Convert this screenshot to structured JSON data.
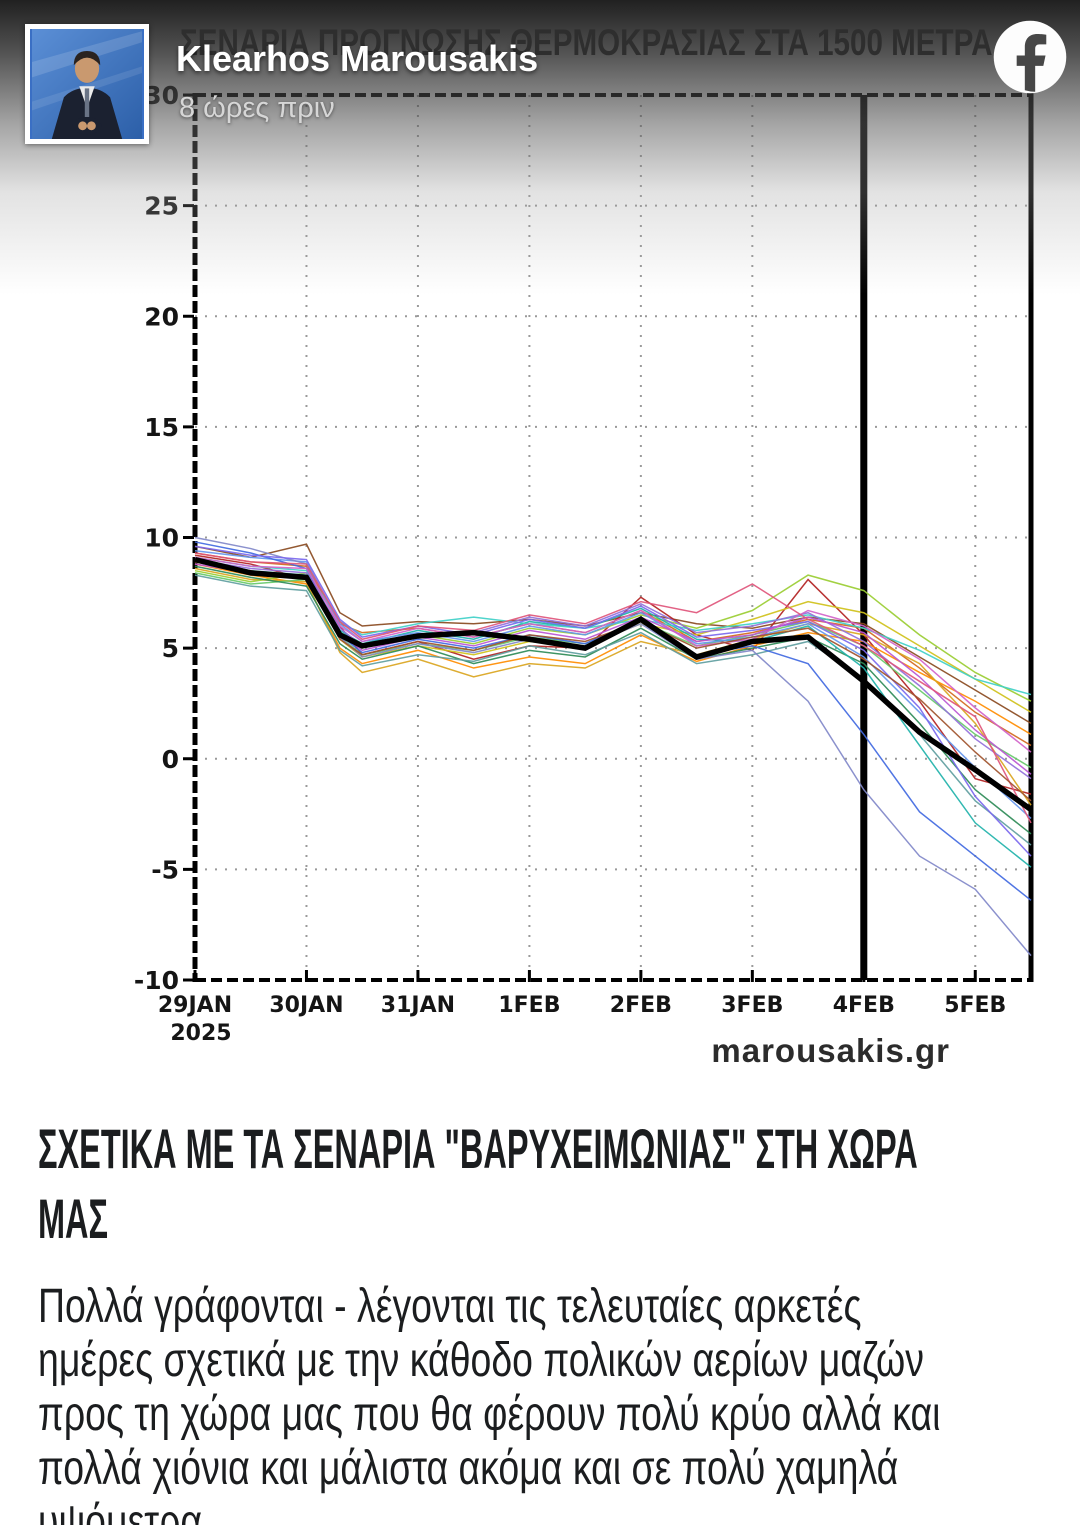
{
  "header": {
    "name": "Klearhos Marousakis",
    "time_ago": "8 ώρες πριν",
    "facebook_icon": "facebook-f-logo",
    "avatar": "tv-presenter-portrait"
  },
  "chart_data": {
    "type": "line",
    "title": "ΣΕΝΑΡΙΑ ΠΡΟΓΝΩΣΗΣ ΘΕΡΜΟΚΡΑΣΙΑΣ ΣΤΑ 1500 ΜΕΤΡΑ",
    "watermark": "marousakis.gr",
    "grid": "dotted",
    "x_unit": "days_from_29JAN2025",
    "x_max": 7.5,
    "x_axis": {
      "year": "2025",
      "labels": [
        {
          "day": 0,
          "label": "29JAN"
        },
        {
          "day": 1,
          "label": "30JAN"
        },
        {
          "day": 2,
          "label": "31JAN"
        },
        {
          "day": 3,
          "label": "1FEB"
        },
        {
          "day": 4,
          "label": "2FEB"
        },
        {
          "day": 5,
          "label": "3FEB"
        },
        {
          "day": 6,
          "label": "4FEB"
        },
        {
          "day": 7,
          "label": "5FEB"
        }
      ]
    },
    "y_axis": {
      "min": -10,
      "max": 30,
      "step": 5,
      "ticks": [
        30,
        25,
        20,
        15,
        10,
        5,
        0,
        -5,
        -10
      ]
    },
    "forecast_line_day": 6,
    "x_points": [
      0,
      0.5,
      1.0,
      1.3,
      1.5,
      2.0,
      2.5,
      3.0,
      3.5,
      4.0,
      4.5,
      5.0,
      5.5,
      6.0,
      6.5,
      7.0,
      7.5
    ],
    "mean": {
      "name": "ensemble-mean",
      "color": "#000000",
      "values": [
        9.0,
        8.4,
        8.2,
        5.6,
        5.1,
        5.55,
        5.7,
        5.4,
        5.0,
        6.3,
        4.6,
        5.3,
        5.5,
        3.5,
        1.2,
        -0.5,
        -2.3
      ]
    },
    "members": [
      {
        "color": "#8a4a1f",
        "values": [
          9.6,
          9.1,
          9.7,
          6.6,
          6.0,
          6.2,
          6.1,
          6.3,
          6.0,
          6.6,
          6.1,
          5.9,
          6.4,
          6.1,
          4.6,
          3.1,
          1.6
        ]
      },
      {
        "color": "#b22222",
        "values": [
          9.2,
          8.8,
          8.1,
          6.0,
          4.7,
          5.3,
          4.5,
          5.1,
          5.0,
          7.3,
          5.6,
          4.9,
          8.1,
          5.6,
          2.6,
          -0.9,
          -1.6
        ]
      },
      {
        "color": "#d2691e",
        "values": [
          9.3,
          8.9,
          8.7,
          6.1,
          5.7,
          5.9,
          5.5,
          6.1,
          5.7,
          6.7,
          5.3,
          5.7,
          6.3,
          5.9,
          4.1,
          2.1,
          0.6
        ]
      },
      {
        "color": "#ff8c00",
        "values": [
          8.8,
          8.3,
          7.9,
          5.0,
          4.3,
          4.9,
          4.1,
          4.6,
          4.3,
          5.6,
          4.4,
          5.1,
          5.7,
          5.3,
          3.9,
          2.6,
          1.1
        ]
      },
      {
        "color": "#daa520",
        "values": [
          8.6,
          8.1,
          8.0,
          4.8,
          3.9,
          4.5,
          3.7,
          4.3,
          4.1,
          5.3,
          4.7,
          5.4,
          6.1,
          5.6,
          4.3,
          1.6,
          -2.1
        ]
      },
      {
        "color": "#cfc11a",
        "values": [
          8.9,
          8.4,
          8.2,
          5.4,
          4.6,
          5.1,
          4.7,
          5.3,
          5.1,
          6.1,
          5.6,
          6.3,
          7.1,
          6.6,
          5.1,
          3.6,
          2.1
        ]
      },
      {
        "color": "#9acd32",
        "values": [
          8.5,
          8.0,
          8.4,
          5.7,
          5.0,
          5.6,
          5.2,
          5.9,
          5.6,
          6.5,
          5.9,
          6.7,
          8.3,
          7.6,
          5.6,
          3.9,
          2.6
        ]
      },
      {
        "color": "#66c96a",
        "values": [
          8.4,
          7.9,
          8.1,
          5.5,
          4.7,
          5.2,
          4.9,
          5.5,
          5.2,
          6.2,
          5.1,
          5.6,
          6.2,
          5.1,
          3.1,
          1.1,
          -0.4
        ]
      },
      {
        "color": "#2e8b57",
        "values": [
          8.7,
          8.2,
          7.8,
          5.2,
          4.5,
          5.1,
          4.3,
          4.9,
          4.6,
          5.9,
          4.5,
          5.0,
          5.5,
          4.3,
          1.6,
          -1.4,
          -3.4
        ]
      },
      {
        "color": "#20b2aa",
        "values": [
          9.0,
          8.5,
          8.3,
          5.8,
          5.2,
          5.8,
          5.4,
          6.2,
          5.9,
          6.8,
          5.4,
          5.3,
          6.0,
          4.1,
          0.6,
          -2.9,
          -4.9
        ]
      },
      {
        "color": "#40d0c8",
        "values": [
          9.1,
          8.7,
          8.5,
          6.2,
          5.6,
          6.1,
          6.4,
          6.1,
          5.9,
          6.3,
          5.8,
          6.1,
          6.5,
          5.9,
          4.9,
          3.6,
          2.9
        ]
      },
      {
        "color": "#5f9ea0",
        "values": [
          8.3,
          7.8,
          7.6,
          4.9,
          4.2,
          4.7,
          4.4,
          5.1,
          4.7,
          5.7,
          4.3,
          4.7,
          5.3,
          3.6,
          1.1,
          -1.9,
          -3.9
        ]
      },
      {
        "color": "#6495ed",
        "values": [
          9.4,
          9.1,
          8.9,
          6.1,
          5.3,
          5.7,
          5.3,
          6.0,
          5.6,
          6.6,
          5.2,
          5.5,
          6.1,
          4.6,
          2.1,
          -0.4,
          -2.7
        ]
      },
      {
        "color": "#4169e1",
        "values": [
          9.8,
          9.3,
          8.6,
          5.6,
          4.8,
          5.4,
          5.0,
          5.6,
          5.2,
          6.3,
          4.7,
          5.1,
          4.3,
          1.1,
          -2.4,
          -4.4,
          -6.4
        ]
      },
      {
        "color": "#8188c9",
        "values": [
          10.0,
          9.5,
          8.8,
          5.5,
          4.6,
          5.2,
          4.8,
          5.4,
          5.1,
          6.1,
          4.5,
          4.9,
          2.6,
          -1.4,
          -4.4,
          -5.9,
          -8.9
        ]
      },
      {
        "color": "#7b68ee",
        "values": [
          9.6,
          9.2,
          9.0,
          6.3,
          5.5,
          6.0,
          5.6,
          6.3,
          5.9,
          6.9,
          5.5,
          5.8,
          6.2,
          4.9,
          2.3,
          -1.7,
          -4.4
        ]
      },
      {
        "color": "#9370db",
        "values": [
          9.0,
          8.6,
          8.4,
          5.9,
          5.1,
          5.6,
          5.7,
          6.4,
          6.0,
          7.0,
          5.7,
          6.0,
          6.6,
          5.3,
          3.3,
          0.9,
          -0.9
        ]
      },
      {
        "color": "#ba55d3",
        "values": [
          8.8,
          8.4,
          8.2,
          5.7,
          4.9,
          5.5,
          5.1,
          5.8,
          5.4,
          6.4,
          5.3,
          5.6,
          6.4,
          5.7,
          3.7,
          1.3,
          -0.7
        ]
      },
      {
        "color": "#d163c9",
        "values": [
          9.1,
          8.7,
          8.6,
          6.0,
          5.3,
          5.9,
          5.5,
          6.1,
          5.7,
          6.7,
          5.1,
          5.4,
          6.7,
          6.0,
          4.5,
          2.3,
          0.3
        ]
      },
      {
        "color": "#e0557b",
        "values": [
          9.3,
          8.9,
          8.8,
          6.2,
          5.4,
          6.0,
          5.8,
          6.5,
          6.1,
          7.1,
          6.6,
          7.9,
          6.3,
          5.1,
          3.5,
          1.9,
          -2.9
        ]
      },
      {
        "color": "#a0522d",
        "values": [
          8.9,
          8.5,
          8.1,
          5.4,
          4.7,
          5.3,
          4.9,
          5.6,
          5.3,
          6.2,
          5.0,
          5.5,
          5.9,
          4.5,
          2.7,
          0.3,
          -1.9
        ]
      }
    ]
  },
  "post": {
    "heading_lines": [
      "ΣΧΕΤΙΚΑ ΜΕ ΤΑ ΣΕΝΑΡΙΑ \"ΒΑΡΥΧΕΙΜΩΝΙΑΣ\" ΣΤΗ ΧΩΡΑ",
      "ΜΑΣ"
    ],
    "body_lines": [
      "Πολλά γράφονται - λέγονται τις τελευταίες αρκετές",
      "ημέρες σχετικά με την κάθοδο πολικών αερίων μαζών",
      "προς τη χώρα μας που θα φέρουν πολύ κρύο αλλά και",
      "πολλά χιόνια και μάλιστα ακόμα και σε πολύ χαμηλά",
      "υψόμετρα."
    ]
  }
}
